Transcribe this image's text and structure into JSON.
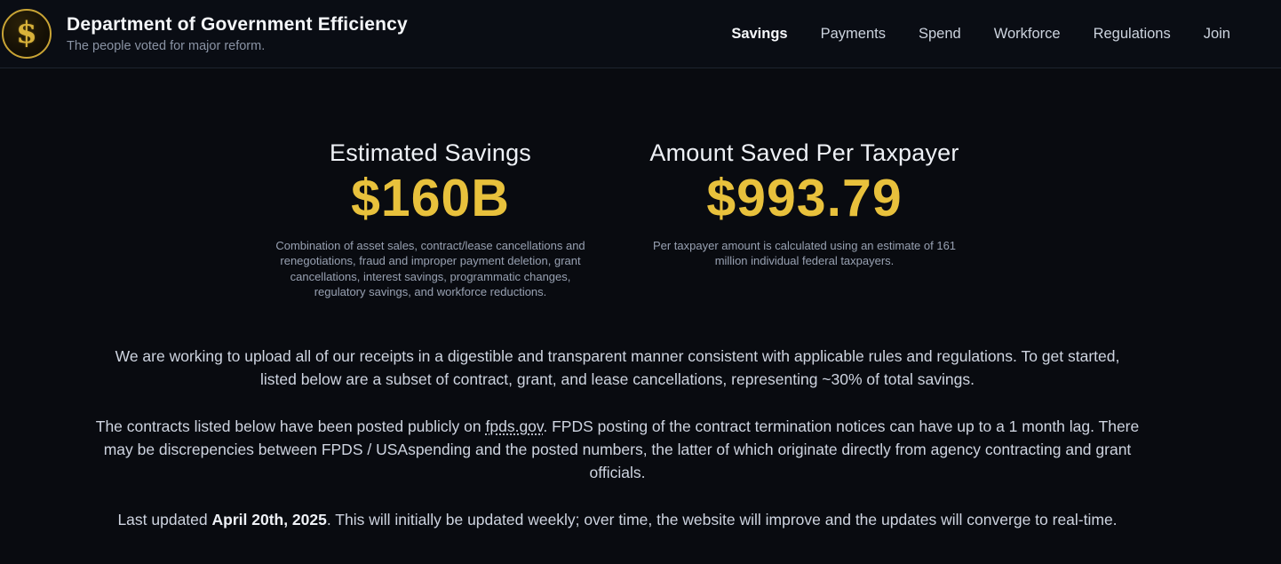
{
  "header": {
    "logo_symbol": "$",
    "title": "Department of Government Efficiency",
    "subtitle": "The people voted for major reform.",
    "nav": [
      {
        "label": "Savings",
        "active": true
      },
      {
        "label": "Payments",
        "active": false
      },
      {
        "label": "Spend",
        "active": false
      },
      {
        "label": "Workforce",
        "active": false
      },
      {
        "label": "Regulations",
        "active": false
      },
      {
        "label": "Join",
        "active": false
      }
    ]
  },
  "stats": [
    {
      "title": "Estimated Savings",
      "value": "$160B",
      "description": "Combination of asset sales, contract/lease cancellations and renegotiations, fraud and improper payment deletion, grant cancellations, interest savings, programmatic changes, regulatory savings, and workforce reductions."
    },
    {
      "title": "Amount Saved Per Taxpayer",
      "value": "$993.79",
      "description": "Per taxpayer amount is calculated using an estimate of 161 million individual federal taxpayers."
    }
  ],
  "paragraphs": {
    "intro": "We are working to upload all of our receipts in a digestible and transparent manner consistent with applicable rules and regulations. To get started, listed below are a subset of contract, grant, and lease cancellations, representing ~30% of total savings.",
    "contracts_prefix": "The contracts listed below have been posted publicly on ",
    "contracts_link": "fpds.gov",
    "contracts_suffix": ". FPDS posting of the contract termination notices can have up to a 1 month lag. There may be discrepencies between FPDS / USAspending and the posted numbers, the latter of which originate directly from agency contracting and grant officials.",
    "updated_prefix": "Last updated ",
    "updated_date": "April 20th, 2025",
    "updated_suffix": ". This will initially be updated weekly; over time, the website will improve and the updates will converge to real-time."
  },
  "colors": {
    "accent_gold": "#e8c13c",
    "background": "#090b10",
    "header_background": "#0a0d14",
    "heading_text": "#eef1f6",
    "muted_text": "#98a1b2"
  }
}
